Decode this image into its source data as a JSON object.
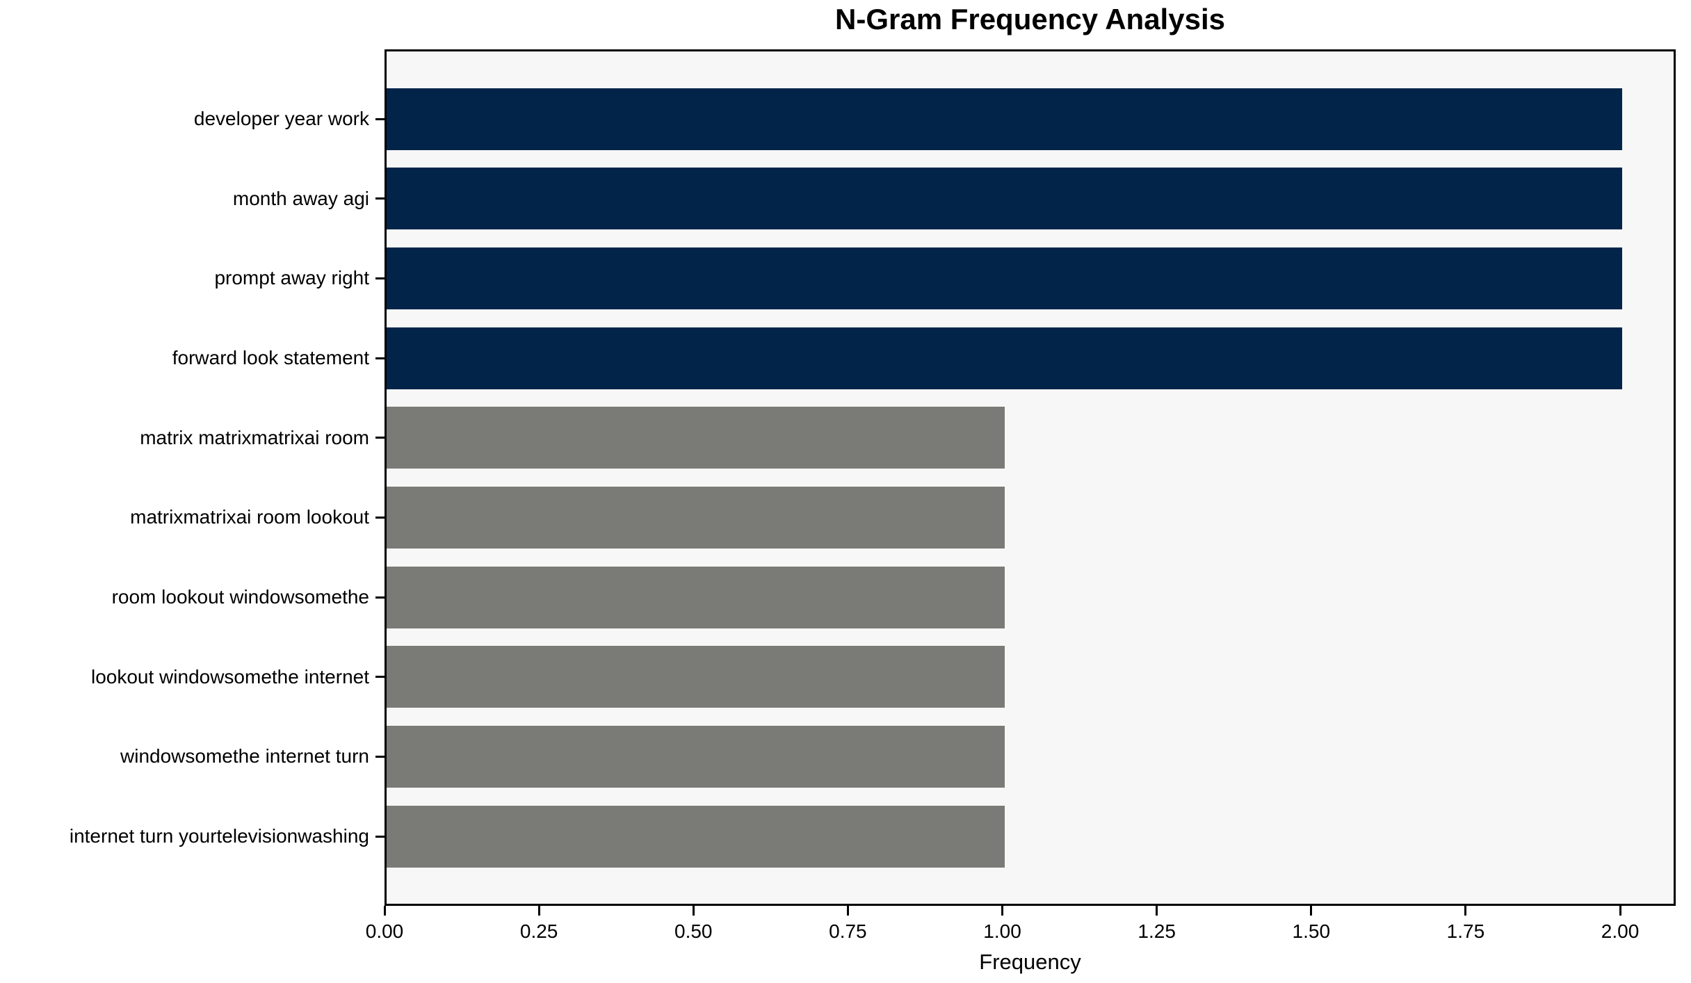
{
  "chart_data": {
    "type": "bar",
    "orientation": "horizontal",
    "title": "N-Gram Frequency Analysis",
    "xlabel": "Frequency",
    "ylabel": "",
    "categories": [
      "developer year work",
      "month away agi",
      "prompt away right",
      "forward look statement",
      "matrix matrixmatrixai room",
      "matrixmatrixai room lookout",
      "room lookout windowsomethe",
      "lookout windowsomethe internet",
      "windowsomethe internet turn",
      "internet turn yourtelevisionwashing"
    ],
    "values": [
      2,
      2,
      2,
      2,
      1,
      1,
      1,
      1,
      1,
      1
    ],
    "bar_colors": [
      "#032449",
      "#032449",
      "#032449",
      "#032449",
      "#7a7a76",
      "#7a7a76",
      "#7a7a76",
      "#7a7a76",
      "#7a7a76",
      "#7a7a76"
    ],
    "xlim": [
      0,
      2.09
    ],
    "xticks": {
      "values": [
        0.0,
        0.25,
        0.5,
        0.75,
        1.0,
        1.25,
        1.5,
        1.75,
        2.0
      ],
      "labels": [
        "0.00",
        "0.25",
        "0.50",
        "0.75",
        "1.00",
        "1.25",
        "1.50",
        "1.75",
        "2.00"
      ]
    },
    "palette": {
      "frequency_2_bar": "#032449",
      "frequency_1_bar": "#7a7a76",
      "plot_background": "#f7f7f7",
      "figure_background": "#ffffff",
      "axis_color": "#000000",
      "text_color": "#000000"
    },
    "grid": false,
    "legend_position": "none"
  }
}
